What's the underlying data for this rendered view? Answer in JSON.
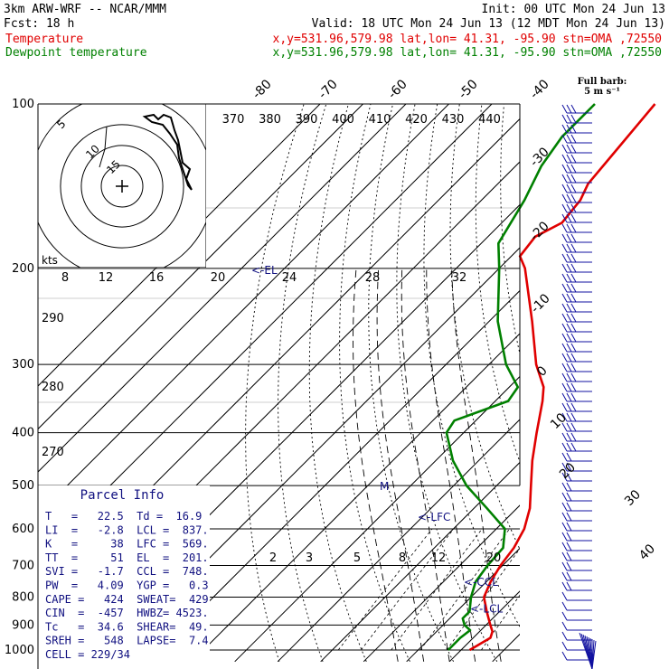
{
  "header": {
    "model": "3km ARW-WRF -- NCAR/MMM",
    "init": "Init: 00 UTC Mon 24 Jun 13",
    "fcst": "Fcst:   18 h",
    "valid": "Valid: 18 UTC Mon 24 Jun 13 (12 MDT Mon 24 Jun 13)",
    "temp_label": "Temperature",
    "temp_info": "x,y=531.96,579.98   lat,lon= 41.31, -95.90  stn=OMA ,72550",
    "dew_label": "Dewpoint temperature",
    "dew_info": "x,y=531.96,579.98   lat,lon= 41.31, -95.90  stn=OMA ,72550"
  },
  "colors": {
    "temperature": "#e00000",
    "dewpoint": "#008000",
    "wind": "#1010a0",
    "parcel": "#101080",
    "grid": "#000000"
  },
  "barb_legend": [
    "Full barb:",
    "5 m s⁻¹"
  ],
  "chart_data": {
    "type": "line",
    "title": "",
    "xlabel": "",
    "ylabel": "",
    "skewt": true,
    "pressure_levels": [
      100,
      200,
      300,
      400,
      500,
      600,
      700,
      800,
      900,
      1000
    ],
    "isotherm_labels": [
      -80,
      -70,
      -60,
      -50,
      -40,
      -30,
      -20,
      -10,
      0,
      10,
      20,
      30,
      40
    ],
    "theta_e_labels": [
      370,
      380,
      390,
      400,
      410,
      420,
      430,
      440
    ],
    "theta_side_labels": [
      290,
      280,
      270
    ],
    "mixing_ratio_labels": [
      2,
      3,
      5,
      8,
      12,
      20
    ],
    "hodograph": {
      "units_label": "kts",
      "ring_labels": [
        5,
        10,
        15
      ],
      "axis_labels": [
        8,
        12,
        16,
        20,
        24,
        28,
        32
      ]
    },
    "annotations": [
      "<-EL",
      "<-LFC",
      "<-CCL",
      "<-LCL",
      "M"
    ],
    "series": [
      {
        "name": "Temperature",
        "points": [
          {
            "p": 1000,
            "t": 22.0
          },
          {
            "p": 950,
            "t": 24.0
          },
          {
            "p": 925,
            "t": 23.0
          },
          {
            "p": 900,
            "t": 21.0
          },
          {
            "p": 850,
            "t": 17.0
          },
          {
            "p": 800,
            "t": 13.0
          },
          {
            "p": 750,
            "t": 11.0
          },
          {
            "p": 700,
            "t": 9.5
          },
          {
            "p": 650,
            "t": 8.5
          },
          {
            "p": 600,
            "t": 6.5
          },
          {
            "p": 550,
            "t": 3.0
          },
          {
            "p": 500,
            "t": -2.0
          },
          {
            "p": 450,
            "t": -7.5
          },
          {
            "p": 400,
            "t": -13.0
          },
          {
            "p": 350,
            "t": -19.0
          },
          {
            "p": 330,
            "t": -22.0
          },
          {
            "p": 300,
            "t": -29.0
          },
          {
            "p": 250,
            "t": -40.0
          },
          {
            "p": 200,
            "t": -54.0
          },
          {
            "p": 190,
            "t": -58.0
          },
          {
            "p": 175,
            "t": -59.0
          },
          {
            "p": 165,
            "t": -56.0
          },
          {
            "p": 150,
            "t": -57.0
          },
          {
            "p": 140,
            "t": -59.0
          },
          {
            "p": 125,
            "t": -60.0
          },
          {
            "p": 100,
            "t": -62.0
          }
        ]
      },
      {
        "name": "Dewpoint temperature",
        "points": [
          {
            "p": 1000,
            "t": 17.0
          },
          {
            "p": 950,
            "t": 17.0
          },
          {
            "p": 920,
            "t": 17.5
          },
          {
            "p": 900,
            "t": 15.0
          },
          {
            "p": 875,
            "t": 13.0
          },
          {
            "p": 850,
            "t": 13.0
          },
          {
            "p": 800,
            "t": 10.0
          },
          {
            "p": 750,
            "t": 7.5
          },
          {
            "p": 700,
            "t": 6.5
          },
          {
            "p": 650,
            "t": 6.0
          },
          {
            "p": 600,
            "t": 2.0
          },
          {
            "p": 550,
            "t": -7.0
          },
          {
            "p": 500,
            "t": -17.0
          },
          {
            "p": 450,
            "t": -26.0
          },
          {
            "p": 400,
            "t": -34.0
          },
          {
            "p": 380,
            "t": -35.0
          },
          {
            "p": 350,
            "t": -27.0
          },
          {
            "p": 330,
            "t": -28.0
          },
          {
            "p": 300,
            "t": -36.0
          },
          {
            "p": 250,
            "t": -48.0
          },
          {
            "p": 200,
            "t": -60.0
          },
          {
            "p": 180,
            "t": -66.0
          },
          {
            "p": 150,
            "t": -70.0
          },
          {
            "p": 130,
            "t": -74.0
          },
          {
            "p": 115,
            "t": -76.0
          },
          {
            "p": 100,
            "t": -76.0
          }
        ]
      }
    ],
    "parcel_info": {
      "title": "Parcel Info",
      "rows": [
        "T   =   22.5  Td =  16.9",
        "LI  =   -2.8  LCL =  837.",
        "K   =     38  LFC =  569.",
        "TT  =     51  EL  =  201.",
        "SVI =   -1.7  CCL =  748.",
        "PW  =   4.09  YGP =   0.3",
        "CAPE =   424  SWEAT=  429",
        "CIN  =  -457  HWBZ= 4523.",
        "Tc   =  34.6  SHEAR=  49.",
        "SREH =   548  LAPSE=  7.4",
        "CELL = 229/34"
      ]
    }
  }
}
